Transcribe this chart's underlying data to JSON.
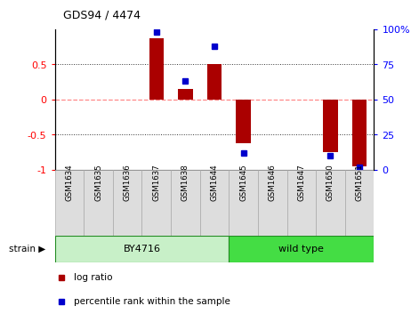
{
  "title": "GDS94 / 4474",
  "samples": [
    "GSM1634",
    "GSM1635",
    "GSM1636",
    "GSM1637",
    "GSM1638",
    "GSM1644",
    "GSM1645",
    "GSM1646",
    "GSM1647",
    "GSM1650",
    "GSM1651"
  ],
  "log_ratio": [
    0.0,
    0.0,
    0.0,
    0.87,
    0.15,
    0.5,
    -0.62,
    0.0,
    0.0,
    -0.75,
    -0.95
  ],
  "percentile_rank": [
    null,
    null,
    null,
    98,
    63,
    88,
    12,
    null,
    null,
    10,
    2
  ],
  "group_BY4716": [
    0,
    1,
    2,
    3,
    4,
    5
  ],
  "group_wildtype": [
    6,
    7,
    8,
    9,
    10
  ],
  "BY4716_color": "#C8F0C8",
  "wildtype_color": "#44DD44",
  "ylim_left": [
    -1.0,
    1.0
  ],
  "ylim_right": [
    0,
    100
  ],
  "left_yticks": [
    -1.0,
    -0.5,
    0.0,
    0.5
  ],
  "left_yticklabels": [
    "-1",
    "-0.5",
    "0",
    "0.5"
  ],
  "right_yticks": [
    0,
    25,
    50,
    75,
    100
  ],
  "right_yticklabels": [
    "0",
    "25",
    "50",
    "75",
    "100%"
  ],
  "bar_color": "#AA0000",
  "dot_color": "#0000CC",
  "zero_line_color": "#FF8888",
  "dotted_line_color": "#888888",
  "label_bg_color": "#DDDDDD",
  "label_border_color": "#AAAAAA",
  "bar_width": 0.5
}
